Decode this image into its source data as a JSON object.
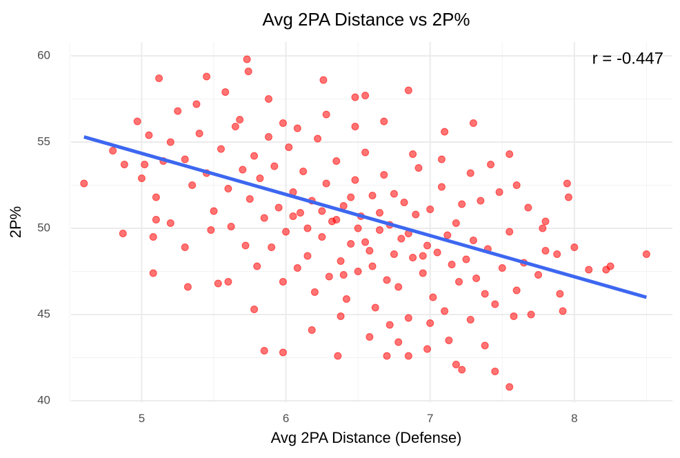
{
  "chart_data": {
    "type": "scatter",
    "title": "Avg 2PA Distance vs 2P%",
    "x_label": "Avg 2PA Distance (Defense)",
    "y_label": "2P%",
    "annotation": "r = -0.447",
    "color": "#ff0000",
    "trend": {
      "x": [
        4.6,
        8.5
      ],
      "y": [
        55.3,
        46.0
      ],
      "color": "#3d67f0"
    },
    "xlim": [
      4.51,
      8.68
    ],
    "ylim": [
      39.9,
      60.8
    ],
    "xticks": [
      5,
      6,
      7,
      8
    ],
    "yticks": [
      40,
      45,
      50,
      55,
      60
    ],
    "xminor": [
      4.5,
      5.5,
      6.5,
      7.5,
      8.5
    ],
    "yminor": [
      42.5,
      47.5,
      52.5,
      57.5
    ],
    "grid": true,
    "x": [
      4.6,
      4.8,
      4.87,
      5.08,
      4.97,
      5.12,
      5.45,
      5.73,
      5.74,
      6.26,
      6.85,
      5.85,
      6.36,
      6.7,
      6.85,
      7.55,
      7.45,
      7.22,
      7.3,
      8.5,
      8.1,
      8.22,
      8.25,
      7.95,
      7.96,
      7.92,
      7.9,
      8.0,
      7.8,
      7.55,
      7.6,
      7.42,
      5.02,
      4.88,
      5.1,
      5.08,
      5.32,
      5.53,
      5.6,
      7.1,
      6.55,
      6.48,
      6.72,
      7.0,
      7.13,
      5.98,
      5.2,
      5.3,
      5.35,
      5.4,
      5.45,
      5.5,
      5.55,
      5.6,
      5.62,
      5.65,
      5.7,
      5.72,
      5.75,
      5.78,
      5.8,
      5.82,
      5.85,
      5.88,
      5.9,
      5.92,
      5.95,
      5.98,
      6.0,
      6.02,
      6.05,
      6.08,
      6.1,
      6.12,
      6.15,
      6.18,
      6.2,
      6.22,
      6.25,
      6.28,
      6.3,
      6.32,
      6.35,
      6.38,
      6.4,
      6.42,
      6.45,
      6.48,
      6.5,
      6.52,
      6.55,
      6.58,
      6.6,
      6.62,
      6.65,
      6.68,
      6.7,
      6.72,
      6.75,
      6.78,
      6.8,
      6.82,
      6.85,
      6.88,
      6.9,
      6.92,
      6.95,
      6.98,
      7.0,
      7.02,
      7.05,
      7.08,
      7.1,
      7.12,
      7.15,
      7.18,
      7.2,
      7.22,
      7.25,
      7.28,
      7.3,
      7.32,
      7.35,
      7.38,
      7.4,
      7.45,
      7.5,
      7.55,
      7.6,
      7.65,
      7.7,
      7.75,
      7.8,
      5.0,
      5.05,
      5.1,
      5.15,
      5.2,
      5.25,
      5.3,
      5.38,
      5.48,
      5.58,
      5.68,
      5.78,
      5.88,
      5.98,
      6.08,
      6.18,
      6.28,
      6.38,
      6.48,
      6.58,
      6.68,
      6.78,
      6.88,
      6.98,
      7.08,
      7.18,
      7.28,
      7.38,
      7.48,
      7.58,
      7.68,
      7.78,
      7.88,
      6.15,
      6.25,
      6.35,
      6.45,
      6.55,
      6.65,
      6.75,
      6.85,
      6.95,
      6.05,
      6.5,
      6.6,
      6.4
    ],
    "y": [
      52.6,
      54.5,
      49.7,
      47.4,
      56.2,
      58.7,
      58.8,
      59.8,
      59.1,
      58.6,
      58.0,
      42.9,
      42.6,
      42.6,
      42.6,
      40.8,
      41.7,
      41.8,
      56.1,
      48.5,
      47.6,
      47.6,
      47.8,
      52.6,
      51.8,
      45.2,
      46.2,
      48.9,
      50.4,
      54.3,
      52.5,
      53.7,
      53.7,
      53.7,
      50.5,
      49.5,
      46.6,
      46.8,
      46.9,
      55.6,
      57.7,
      57.6,
      44.4,
      44.5,
      43.5,
      42.8,
      55.0,
      54.0,
      52.5,
      55.5,
      53.2,
      51.0,
      54.6,
      52.3,
      50.1,
      55.9,
      53.4,
      49.0,
      51.7,
      54.2,
      47.8,
      52.9,
      50.6,
      55.3,
      48.9,
      53.6,
      51.2,
      46.9,
      49.8,
      54.7,
      52.1,
      47.7,
      50.9,
      53.3,
      48.4,
      51.6,
      46.3,
      55.2,
      49.5,
      52.6,
      47.2,
      50.4,
      53.9,
      48.1,
      51.3,
      45.9,
      49.1,
      52.8,
      47.5,
      50.7,
      54.4,
      48.7,
      51.9,
      45.4,
      49.9,
      53.1,
      47.0,
      50.2,
      52.0,
      46.6,
      49.4,
      51.5,
      44.8,
      48.3,
      50.8,
      53.5,
      47.4,
      49.0,
      51.1,
      46.0,
      48.6,
      52.4,
      45.2,
      49.6,
      47.9,
      50.3,
      46.9,
      51.4,
      48.2,
      44.7,
      49.3,
      47.1,
      51.6,
      46.2,
      48.8,
      45.6,
      47.7,
      49.8,
      46.4,
      48.0,
      45.0,
      47.3,
      48.7,
      52.9,
      55.4,
      51.8,
      53.9,
      50.3,
      56.8,
      48.9,
      57.2,
      49.9,
      57.9,
      56.3,
      45.3,
      57.5,
      56.1,
      55.8,
      44.1,
      56.6,
      44.9,
      55.9,
      43.7,
      56.2,
      43.4,
      54.3,
      43.0,
      54.0,
      42.1,
      53.2,
      43.2,
      52.1,
      44.9,
      51.2,
      50.0,
      48.5,
      50.0,
      51.0,
      50.5,
      51.8,
      49.2,
      50.9,
      48.5,
      49.7,
      48.4,
      50.7,
      50.0,
      47.8,
      47.3
    ]
  }
}
